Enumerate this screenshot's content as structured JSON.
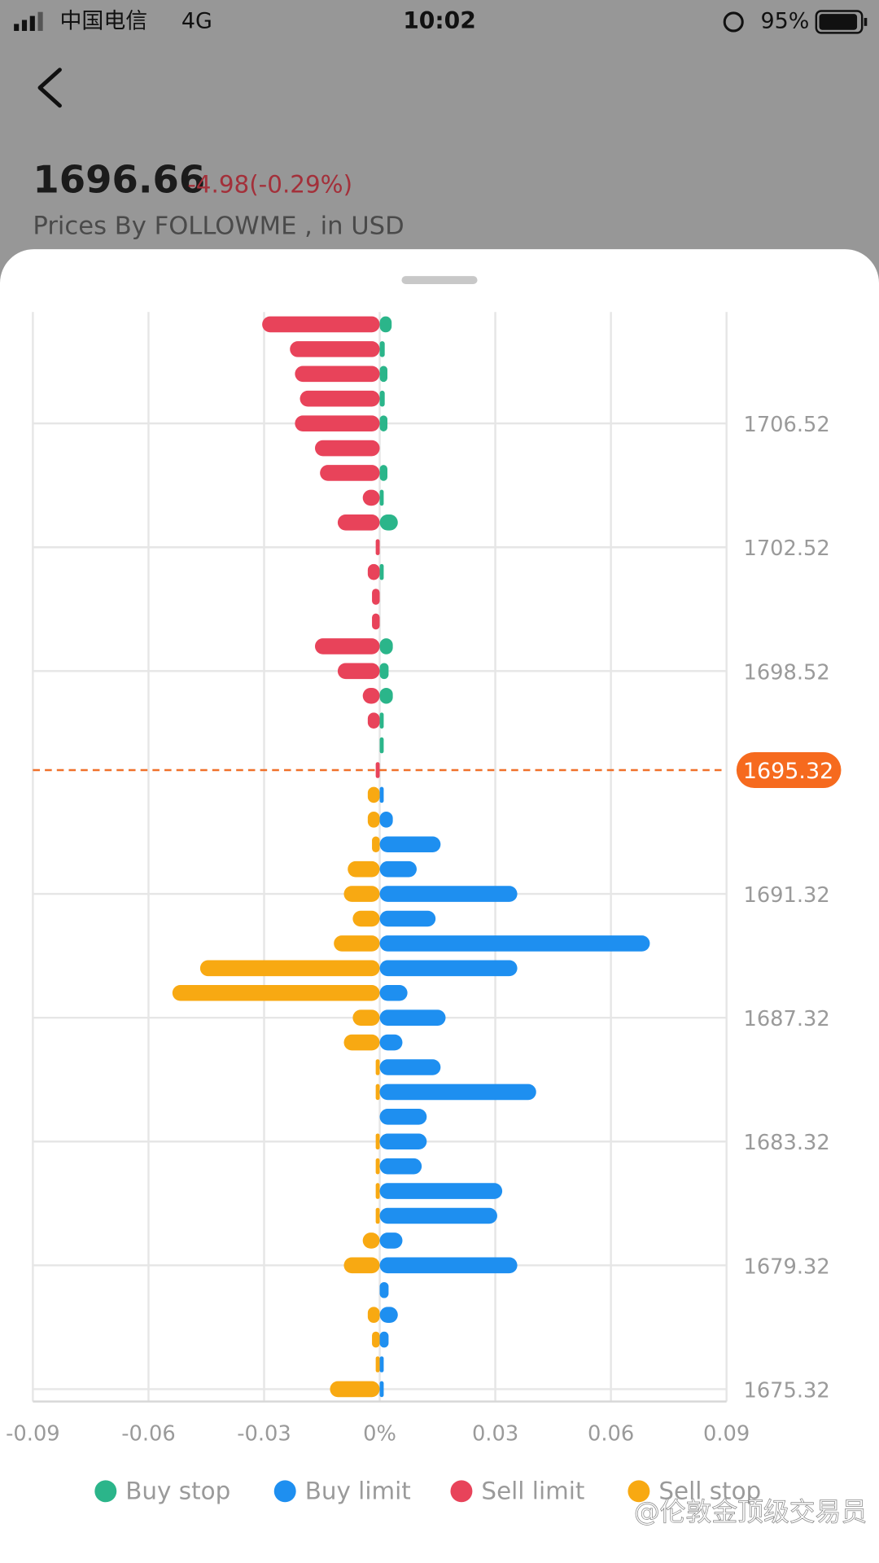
{
  "status_bar": {
    "carrier": "中国电信",
    "network": "4G",
    "time": "10:02",
    "battery": "95%"
  },
  "header": {
    "price": "1696.66",
    "change": "-4.98(-0.29%)",
    "source": "Prices By FOLLOWME , in USD"
  },
  "watermark": "@伦敦金顶级交易员",
  "chart_data": {
    "type": "bar",
    "orientation": "horizontal",
    "y": [
      1709.72,
      1708.92,
      1708.12,
      1707.32,
      1706.52,
      1705.72,
      1704.92,
      1704.12,
      1703.32,
      1702.52,
      1701.72,
      1700.92,
      1700.12,
      1699.32,
      1698.52,
      1697.72,
      1696.92,
      1696.12,
      1695.32,
      1694.52,
      1693.72,
      1692.92,
      1692.12,
      1691.32,
      1690.52,
      1689.72,
      1688.92,
      1688.12,
      1687.32,
      1686.52,
      1685.72,
      1684.92,
      1684.12,
      1683.32,
      1682.52,
      1681.72,
      1680.92,
      1680.12,
      1679.32,
      1678.52,
      1677.72,
      1676.92,
      1676.12,
      1675.32
    ],
    "series": [
      {
        "name": "Buy stop",
        "color": "#2bb58a",
        "values": [
          0.0031,
          0.0013,
          0.002,
          0.0013,
          0.002,
          null,
          0.002,
          0.001,
          0.0047,
          null,
          0.001,
          null,
          null,
          0.0034,
          0.0023,
          0.0034,
          0.001,
          0.001,
          null,
          null,
          null,
          null,
          null,
          null,
          null,
          null,
          null,
          null,
          null,
          null,
          null,
          null,
          null,
          null,
          null,
          null,
          null,
          null,
          null,
          null,
          null,
          null,
          null,
          null
        ]
      },
      {
        "name": "Buy limit",
        "color": "#1e8ff0",
        "values": [
          null,
          null,
          null,
          null,
          null,
          null,
          null,
          null,
          null,
          null,
          null,
          null,
          null,
          null,
          null,
          null,
          null,
          null,
          null,
          0.001,
          0.0034,
          0.0158,
          0.0096,
          0.0357,
          0.0145,
          0.0701,
          0.0357,
          0.0072,
          0.0171,
          0.0059,
          0.0158,
          0.0406,
          0.0122,
          0.0122,
          0.0109,
          0.0318,
          0.0305,
          0.0059,
          0.0357,
          0.0023,
          0.0047,
          0.0023,
          0.001,
          0.001
        ]
      },
      {
        "name": "Sell limit",
        "color": "#e8435a",
        "values": [
          -0.0305,
          -0.0233,
          -0.022,
          -0.0207,
          -0.022,
          -0.0168,
          -0.0155,
          -0.0044,
          -0.0109,
          -0.001,
          -0.0031,
          -0.002,
          -0.002,
          -0.0168,
          -0.0109,
          -0.0044,
          -0.0031,
          null,
          -0.001,
          null,
          null,
          null,
          null,
          null,
          null,
          null,
          null,
          null,
          null,
          null,
          null,
          null,
          null,
          null,
          null,
          null,
          null,
          null,
          null,
          null,
          null,
          null,
          null,
          null
        ]
      },
      {
        "name": "Sell stop",
        "color": "#f8a912",
        "values": [
          null,
          null,
          null,
          null,
          null,
          null,
          null,
          null,
          null,
          null,
          null,
          null,
          null,
          null,
          null,
          null,
          null,
          null,
          null,
          -0.0031,
          -0.0031,
          -0.002,
          -0.0083,
          -0.0093,
          -0.007,
          -0.0119,
          -0.0466,
          -0.0538,
          -0.007,
          -0.0093,
          -0.0008,
          -0.0008,
          null,
          -0.0008,
          -0.0008,
          -0.0008,
          -0.0008,
          -0.0044,
          -0.0093,
          null,
          -0.0031,
          -0.002,
          -0.0008,
          -0.0129
        ]
      }
    ],
    "xlim": [
      -0.09,
      0.09
    ],
    "xticks": [
      -0.09,
      -0.06,
      -0.03,
      {
        "value": 0,
        "label": "0%"
      },
      0.03,
      0.06,
      0.09
    ],
    "ylim": [
      1674.92,
      1710.12
    ],
    "yticks": [
      1706.52,
      1702.52,
      1698.52,
      1691.32,
      1687.32,
      1683.32,
      1679.32,
      1675.32
    ],
    "current_price": 1695.32,
    "grid": true
  }
}
